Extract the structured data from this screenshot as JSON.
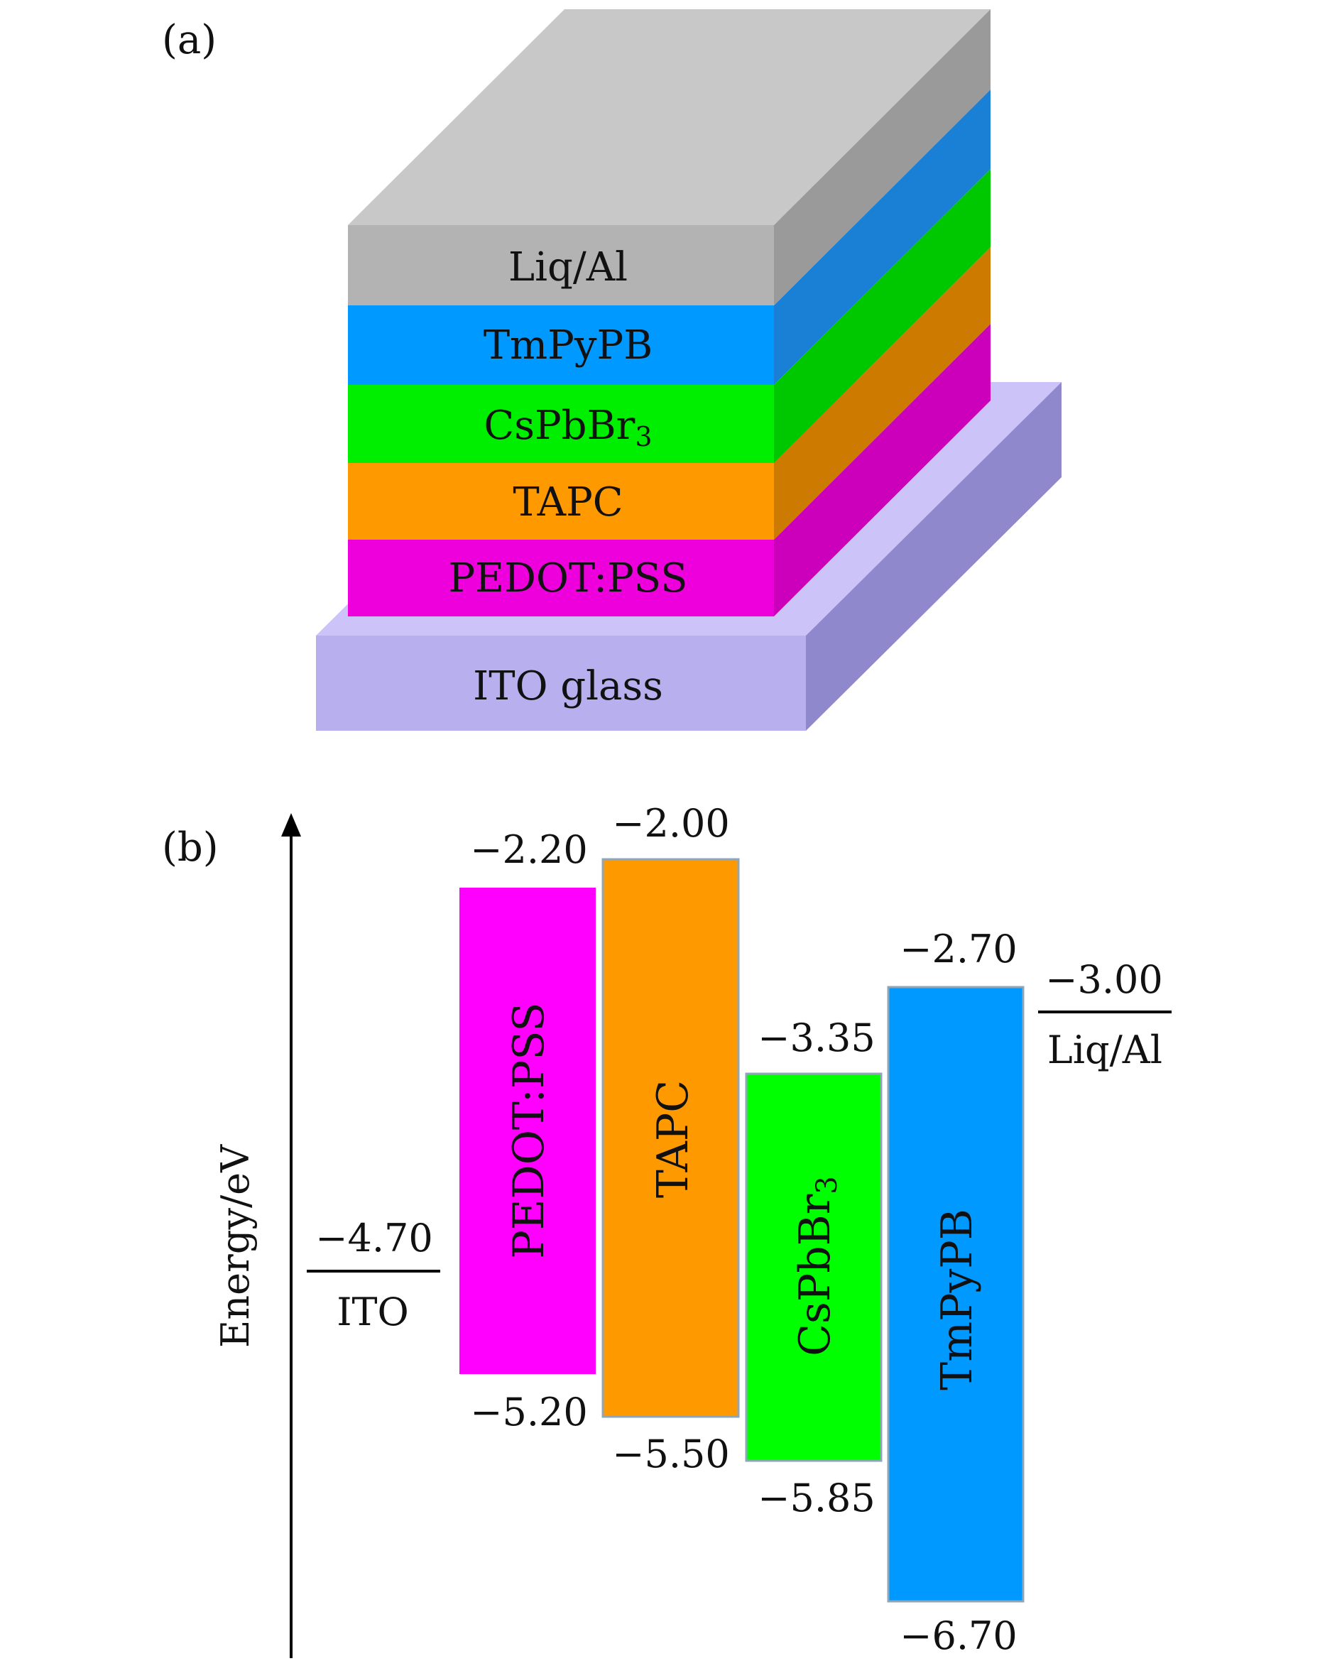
{
  "panel_a": {
    "label": "(a)",
    "layers": [
      {
        "name": "Liq/Al",
        "front": "#b3b3b3",
        "side": "#9a9a9a",
        "top": "#c8c8c8"
      },
      {
        "name": "TmPyPB",
        "front": "#0099ff",
        "side": "#1a80d6"
      },
      {
        "name": "CsPbBr",
        "sub": "3",
        "front": "#00ee00",
        "side": "#00c800"
      },
      {
        "name": "TAPC",
        "front": "#ff9900",
        "side": "#cc7a00"
      },
      {
        "name": "PEDOT:PSS",
        "front": "#ee00dd",
        "side": "#cc00bb"
      }
    ],
    "substrate": {
      "name": "ITO glass",
      "front": "#b8b0ee",
      "side": "#9088cc",
      "top": "#ccc4f8"
    }
  },
  "panel_b": {
    "label": "(b)",
    "axis_label": "Energy/eV",
    "electrodes": [
      {
        "name": "ITO",
        "level": "−4.70"
      },
      {
        "name": "Liq/Al",
        "level": "−3.00"
      }
    ],
    "bands": [
      {
        "name": "PEDOT:PSS",
        "top": "−2.20",
        "bottom": "−5.20",
        "color": "#ff00ff"
      },
      {
        "name": "TAPC",
        "top": "−2.00",
        "bottom": "−5.50",
        "color": "#ff9900"
      },
      {
        "name": "CsPbBr",
        "sub": "3",
        "top": "−3.35",
        "bottom": "−5.85",
        "color": "#00ff00"
      },
      {
        "name": "TmPyPB",
        "top": "−2.70",
        "bottom": "−6.70",
        "color": "#0099ff"
      }
    ]
  }
}
